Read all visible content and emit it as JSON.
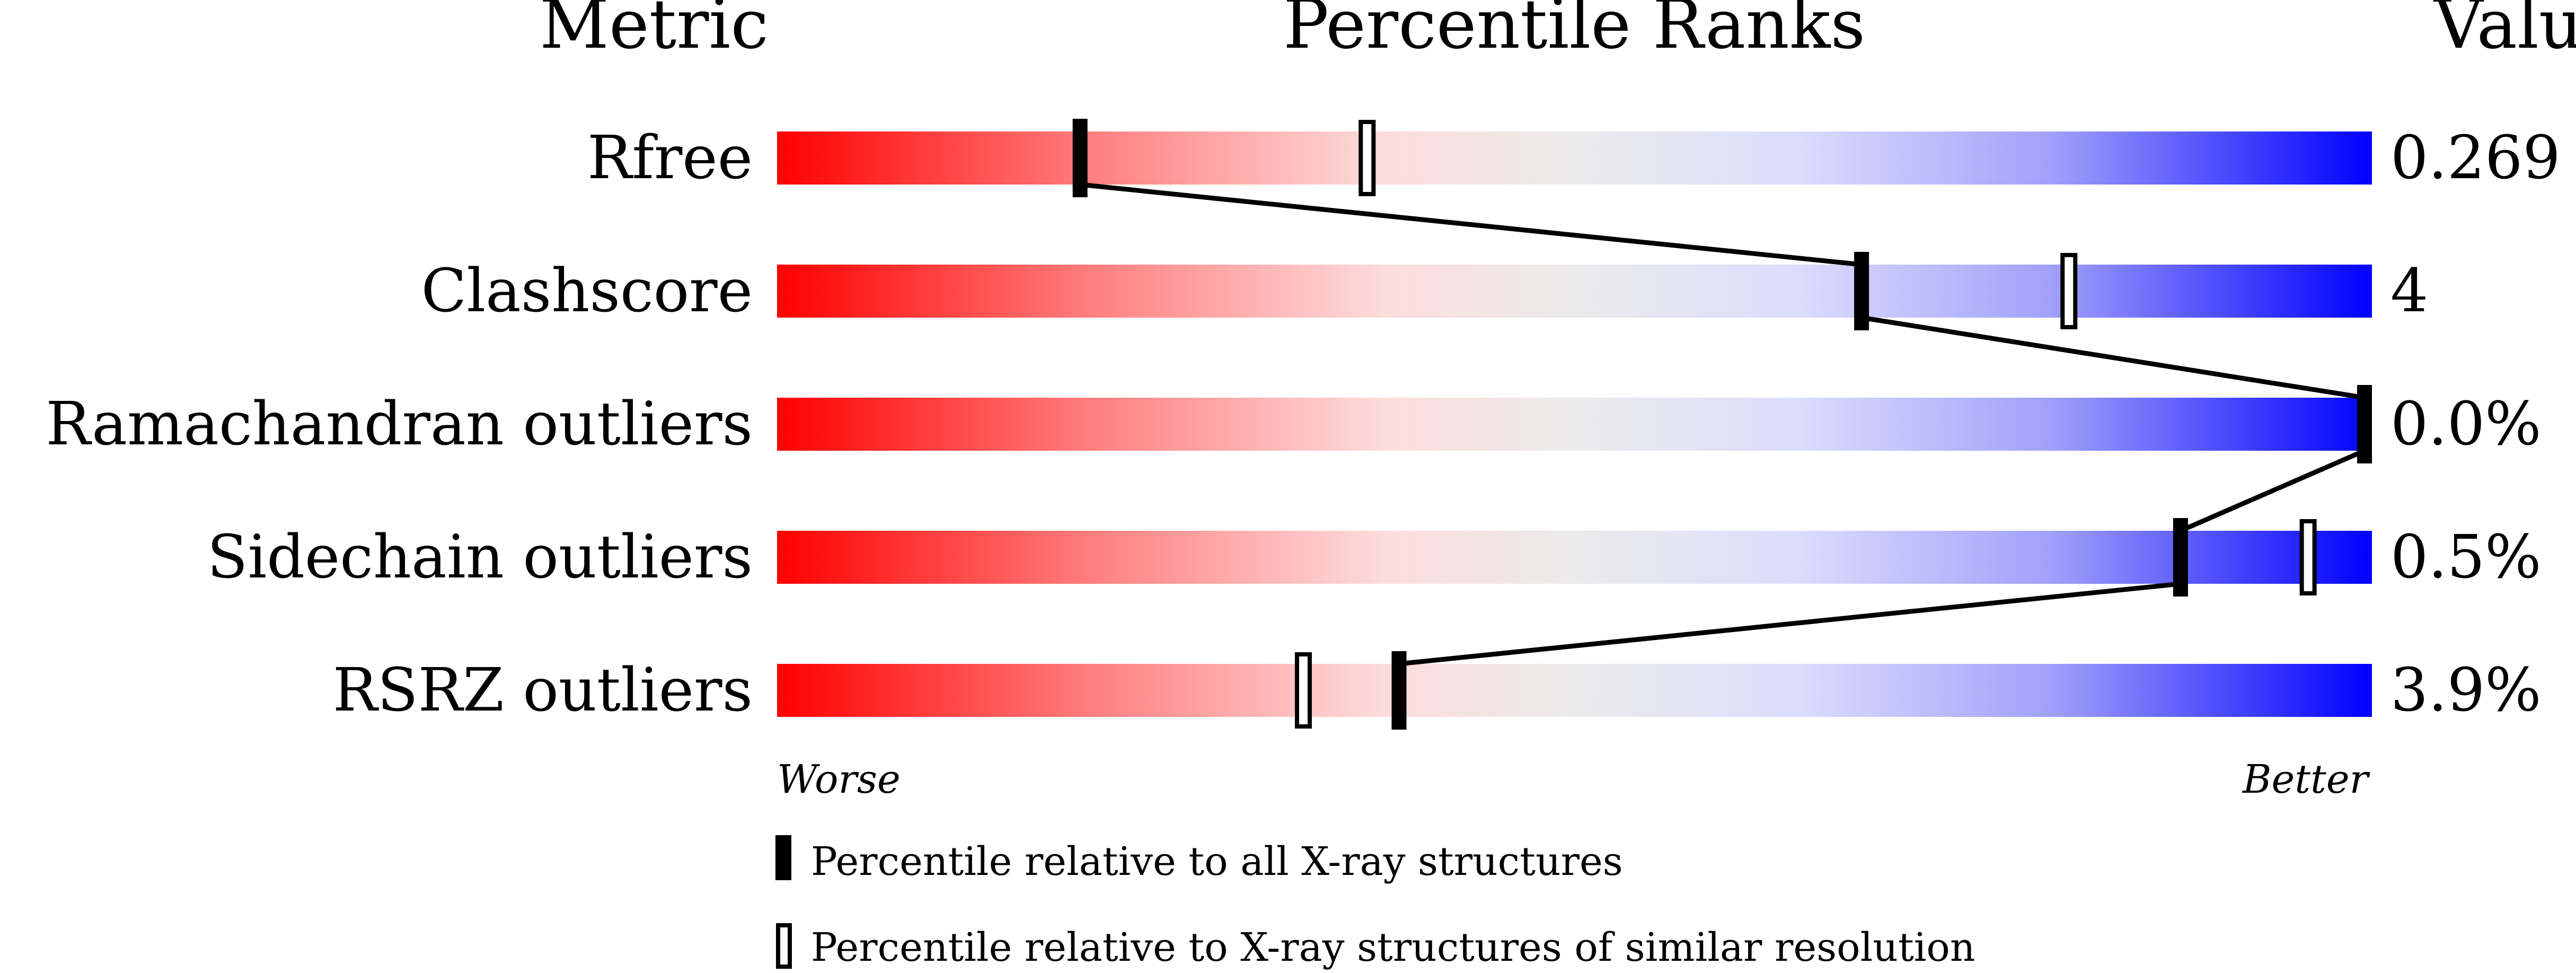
{
  "chart_data": {
    "type": "bar",
    "headers": {
      "metric": "Metric",
      "ranks": "Percentile Ranks",
      "value": "Value"
    },
    "xlim": [
      0,
      100
    ],
    "gradient_colors": {
      "worse": "#ff0000",
      "middle": "#ebebeb",
      "better": "#0000ff"
    },
    "rows": [
      {
        "metric": "Rfree",
        "value": "0.269",
        "percentile_all": 19,
        "percentile_similar": 37
      },
      {
        "metric": "Clashscore",
        "value": "4",
        "percentile_all": 68,
        "percentile_similar": 81
      },
      {
        "metric": "Ramachandran outliers",
        "value": "0.0%",
        "percentile_all": 100,
        "percentile_similar": 100
      },
      {
        "metric": "Sidechain outliers",
        "value": "0.5%",
        "percentile_all": 88,
        "percentile_similar": 96
      },
      {
        "metric": "RSRZ outliers",
        "value": "3.9%",
        "percentile_all": 39,
        "percentile_similar": 33
      }
    ],
    "axis_labels": {
      "left": "Worse",
      "right": "Better"
    },
    "legend": [
      {
        "marker": "filled",
        "label": "Percentile relative to all X-ray structures"
      },
      {
        "marker": "open",
        "label": "Percentile relative to X-ray structures of similar resolution"
      }
    ]
  }
}
